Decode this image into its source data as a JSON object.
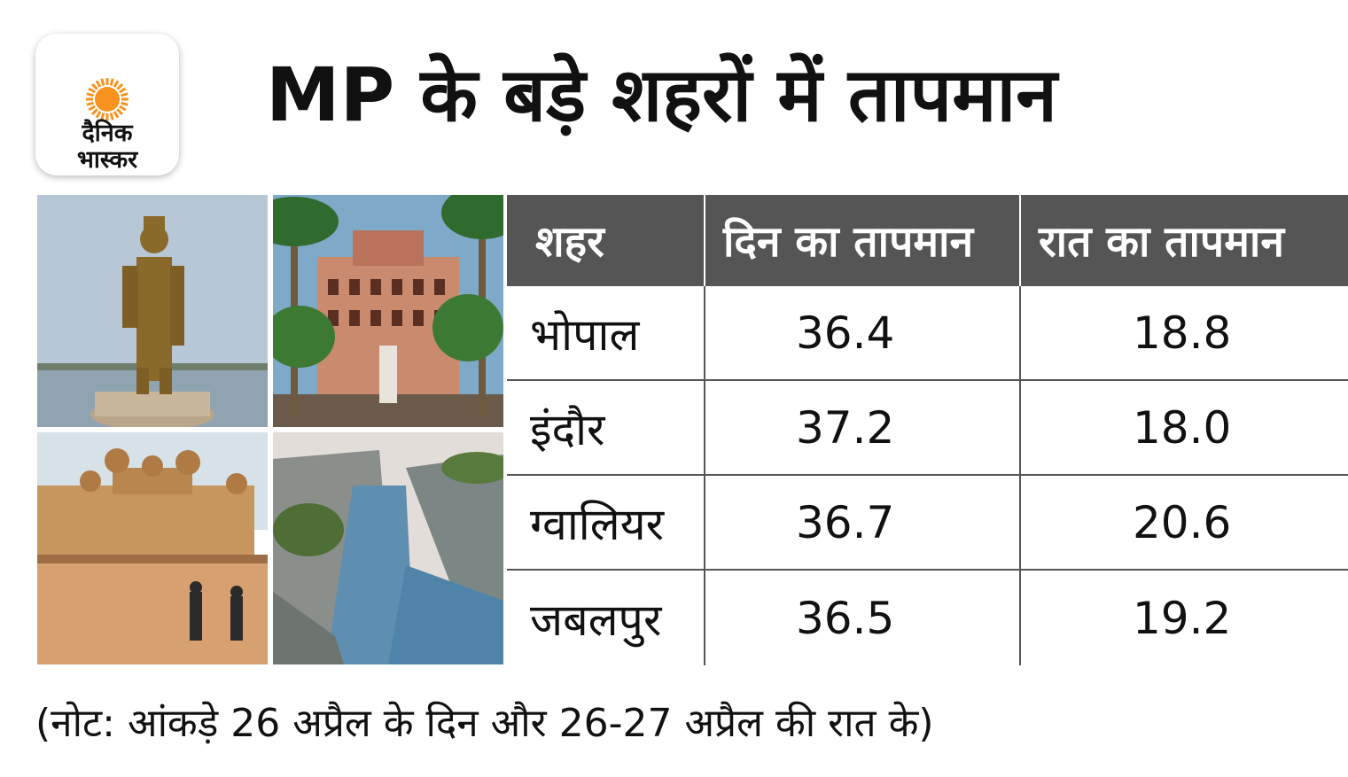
{
  "logo": {
    "line1": "दैनिक",
    "line2": "भास्कर"
  },
  "title": "MP के बड़े शहरों में तापमान",
  "note": "(नोट: आंकड़े 26 अप्रैल के दिन और 26-27 अप्रैल की रात के)",
  "colors": {
    "header_bg": "#555555",
    "logo_sun": "#f7931e"
  },
  "photos": [
    {
      "name": "statue-photo"
    },
    {
      "name": "palace-photo"
    },
    {
      "name": "fort-photo"
    },
    {
      "name": "river-gorge-photo"
    }
  ],
  "chart_data": {
    "type": "table",
    "title": "MP के बड़े शहरों में तापमान",
    "columns": [
      "शहर",
      "दिन का तापमान",
      "रात का तापमान"
    ],
    "rows": [
      {
        "city": "भोपाल",
        "day": "36.4",
        "night": "18.8"
      },
      {
        "city": "इंदौर",
        "day": "37.2",
        "night": "18.0"
      },
      {
        "city": "ग्वालियर",
        "day": "36.7",
        "night": "20.6"
      },
      {
        "city": "जबलपुर",
        "day": "36.5",
        "night": "19.2"
      }
    ]
  }
}
